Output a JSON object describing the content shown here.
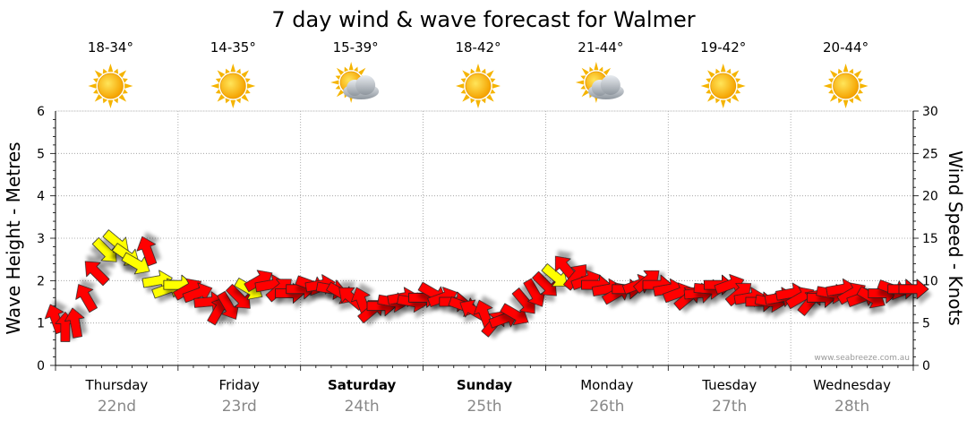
{
  "chart_data": {
    "type": "line",
    "title": "7 day wind & wave forecast for Walmer",
    "ylabel_left": "Wave Height - Metres",
    "ylabel_right": "Wind Speed - Knots",
    "ylim_left": [
      0,
      6
    ],
    "ylim_right": [
      0,
      30
    ],
    "yticks_left": [
      "0",
      "1",
      "2",
      "3",
      "4",
      "5",
      "6"
    ],
    "yticks_right": [
      "0",
      "5",
      "10",
      "15",
      "20",
      "25",
      "30"
    ],
    "watermark": "www.seabreeze.com.au",
    "days": [
      {
        "name": "Thursday",
        "date": "22nd",
        "temp": "18-34°",
        "weather": "sunny",
        "bold": false
      },
      {
        "name": "Friday",
        "date": "23rd",
        "temp": "14-35°",
        "weather": "sunny",
        "bold": false
      },
      {
        "name": "Saturday",
        "date": "24th",
        "temp": "15-39°",
        "weather": "partly-cloudy",
        "bold": true
      },
      {
        "name": "Sunday",
        "date": "25th",
        "temp": "18-42°",
        "weather": "sunny",
        "bold": true
      },
      {
        "name": "Monday",
        "date": "26th",
        "temp": "21-44°",
        "weather": "partly-cloudy",
        "bold": false
      },
      {
        "name": "Tuesday",
        "date": "27th",
        "temp": "19-42°",
        "weather": "sunny",
        "bold": false
      },
      {
        "name": "Wednesday",
        "date": "28th",
        "temp": "20-44°",
        "weather": "sunny",
        "bold": false
      }
    ],
    "wind_series": {
      "name": "Wind Speed (knots) with direction",
      "t_days": [
        0.0,
        0.08,
        0.16,
        0.25,
        0.33,
        0.41,
        0.5,
        0.58,
        0.66,
        0.75,
        0.83,
        0.91,
        1.0,
        1.08,
        1.16,
        1.25,
        1.33,
        1.41,
        1.5,
        1.58,
        1.66,
        1.75,
        1.83,
        1.91,
        2.0,
        2.08,
        2.16,
        2.25,
        2.33,
        2.41,
        2.5,
        2.58,
        2.66,
        2.75,
        2.83,
        2.91,
        3.0,
        3.08,
        3.16,
        3.25,
        3.33,
        3.41,
        3.5,
        3.58,
        3.66,
        3.75,
        3.83,
        3.91,
        4.0,
        4.08,
        4.16,
        4.25,
        4.33,
        4.41,
        4.5,
        4.58,
        4.66,
        4.75,
        4.83,
        4.91,
        5.0,
        5.08,
        5.16,
        5.25,
        5.33,
        5.41,
        5.5,
        5.58,
        5.66,
        5.75,
        5.83,
        5.91,
        6.0,
        6.08,
        6.16,
        6.25,
        6.33,
        6.41,
        6.5,
        6.58,
        6.66,
        6.75,
        6.83,
        6.91,
        7.0
      ],
      "speeds": [
        5.5,
        4.5,
        5.0,
        8.0,
        11.0,
        13.5,
        14.5,
        13.0,
        12.0,
        13.5,
        10.0,
        9.0,
        9.5,
        9.0,
        8.5,
        7.5,
        6.5,
        7.0,
        8.0,
        9.0,
        10.0,
        9.5,
        9.0,
        8.5,
        9.0,
        9.5,
        9.5,
        9.0,
        8.5,
        8.0,
        7.5,
        6.5,
        7.0,
        7.5,
        8.0,
        7.5,
        8.0,
        8.5,
        8.0,
        7.5,
        7.0,
        6.5,
        6.0,
        5.0,
        5.5,
        6.0,
        7.5,
        8.5,
        9.5,
        10.5,
        11.5,
        10.5,
        10.0,
        9.5,
        9.0,
        8.5,
        9.0,
        9.5,
        10.0,
        9.5,
        9.0,
        8.5,
        8.0,
        8.5,
        9.0,
        9.5,
        9.5,
        8.5,
        8.0,
        7.5,
        7.5,
        8.0,
        8.5,
        8.0,
        7.5,
        8.0,
        8.5,
        9.0,
        8.5,
        8.0,
        8.0,
        8.5,
        9.0,
        9.0,
        9.0
      ],
      "directions_deg": [
        200,
        180,
        190,
        210,
        225,
        45,
        50,
        55,
        60,
        200,
        100,
        110,
        90,
        120,
        110,
        95,
        150,
        30,
        45,
        60,
        120,
        100,
        130,
        90,
        90,
        70,
        100,
        80,
        60,
        230,
        200,
        130,
        90,
        80,
        100,
        80,
        90,
        60,
        110,
        90,
        70,
        240,
        200,
        140,
        110,
        60,
        40,
        30,
        45,
        50,
        220,
        140,
        110,
        90,
        100,
        120,
        90,
        110,
        130,
        90,
        100,
        110,
        130,
        95,
        85,
        90,
        110,
        130,
        100,
        90,
        80,
        100,
        100,
        120,
        140,
        90,
        80,
        100,
        120,
        110,
        60,
        90,
        70,
        90,
        90
      ],
      "arrow_colors": [
        "red",
        "red",
        "red",
        "red",
        "red",
        "yellow",
        "yellow",
        "yellow",
        "yellow",
        "red",
        "yellow",
        "yellow",
        "yellow",
        "red",
        "red",
        "red",
        "red",
        "red",
        "red",
        "yellow",
        "red",
        "red",
        "red",
        "red",
        "red",
        "red",
        "red",
        "red",
        "red",
        "red",
        "red",
        "red",
        "red",
        "red",
        "red",
        "red",
        "red",
        "red",
        "red",
        "red",
        "red",
        "red",
        "red",
        "red",
        "red",
        "red",
        "red",
        "red",
        "red",
        "yellow",
        "red",
        "red",
        "red",
        "red",
        "red",
        "red",
        "red",
        "red",
        "red",
        "red",
        "red",
        "red",
        "red",
        "red",
        "red",
        "red",
        "red",
        "red",
        "red",
        "red",
        "red",
        "red",
        "red",
        "red",
        "red",
        "red",
        "red",
        "red",
        "red",
        "red",
        "red",
        "red",
        "red",
        "red",
        "red"
      ]
    },
    "colors": {
      "arrow_red": "#ff0000",
      "arrow_yellow": "#ffff00",
      "arrow_stroke": "#222222",
      "grid": "#999999",
      "axis_text": "#000000",
      "date_text": "#888888",
      "watermark": "#999999"
    }
  }
}
